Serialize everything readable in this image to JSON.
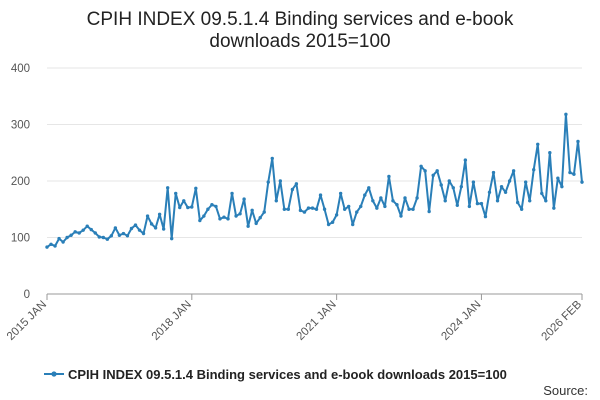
{
  "chart_data": {
    "type": "line",
    "title_lines": [
      "CPIH INDEX 09.5.1.4 Binding services and e-book",
      "downloads 2015=100"
    ],
    "xlabel": "",
    "ylabel": "",
    "ylim": [
      0,
      400
    ],
    "yticks": [
      0,
      100,
      200,
      300,
      400
    ],
    "grid": true,
    "legend_position": "bottom",
    "x_ticks": [
      "2015 JAN",
      "2018 JAN",
      "2021 JAN",
      "2024 JAN",
      "2026 FEB"
    ],
    "x_tick_months": [
      0,
      36,
      72,
      108,
      133
    ],
    "x_start": "2015 JAN",
    "series": [
      {
        "name": "CPIH INDEX 09.5.1.4 Binding services and e-book downloads 2015=100",
        "color": "#2a7fb8",
        "values": [
          83,
          88,
          85,
          98,
          92,
          100,
          104,
          110,
          108,
          113,
          120,
          114,
          108,
          101,
          100,
          97,
          103,
          117,
          104,
          107,
          103,
          116,
          122,
          113,
          107,
          138,
          124,
          117,
          141,
          115,
          188,
          98,
          178,
          153,
          165,
          153,
          154,
          187,
          130,
          138,
          150,
          158,
          155,
          133,
          136,
          133,
          178,
          138,
          142,
          168,
          120,
          148,
          125,
          135,
          145,
          198,
          240,
          165,
          200,
          150,
          150,
          185,
          195,
          148,
          145,
          152,
          152,
          150,
          175,
          150,
          123,
          127,
          140,
          178,
          150,
          155,
          123,
          145,
          155,
          175,
          188,
          165,
          152,
          170,
          155,
          208,
          165,
          158,
          138,
          170,
          150,
          150,
          170,
          226,
          218,
          146,
          210,
          218,
          193,
          165,
          200,
          188,
          157,
          190,
          237,
          155,
          198,
          160,
          160,
          137,
          180,
          215,
          165,
          190,
          180,
          200,
          218,
          162,
          150,
          198,
          165,
          220,
          265,
          178,
          165,
          250,
          152,
          205,
          190,
          318,
          215,
          212,
          270,
          198
        ]
      }
    ]
  },
  "legend": {
    "label": "CPIH INDEX 09.5.1.4 Binding services and e-book downloads 2015=100"
  },
  "source": {
    "label": "Source:"
  },
  "colors": {
    "line": "#2a7fb8",
    "grid": "#e6e6e6",
    "axis": "#999999"
  }
}
